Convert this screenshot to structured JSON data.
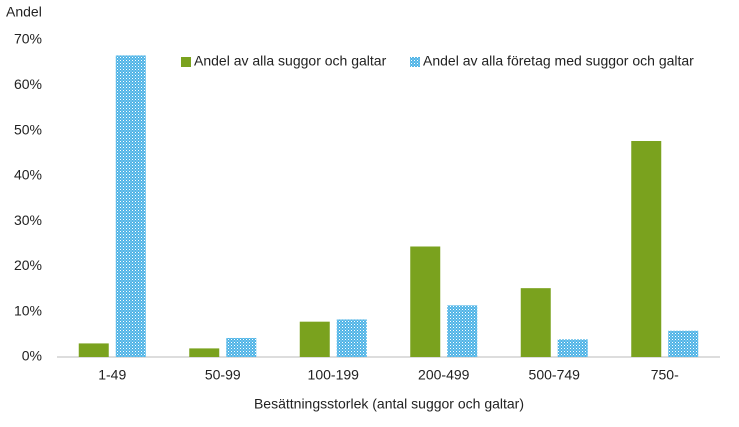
{
  "chart_data": {
    "type": "bar",
    "y_axis_label": "Andel",
    "x_axis_label": "Besättningsstorlek (antal suggor och galtar)",
    "categories": [
      "1-49",
      "50-99",
      "100-199",
      "200-499",
      "500-749",
      "750-"
    ],
    "series": [
      {
        "name": "Andel av alla suggor och galtar",
        "color": "#7aa21e",
        "values": [
          3.0,
          1.9,
          7.8,
          24.4,
          15.2,
          47.7
        ]
      },
      {
        "name": "Andel av alla företag med suggor och galtar",
        "color": "#4fb4e6",
        "pattern": "dots",
        "values": [
          66.6,
          4.2,
          8.3,
          11.4,
          3.9,
          5.8
        ]
      }
    ],
    "ylim": [
      0,
      70
    ],
    "yticks": [
      {
        "value": 0,
        "label": "0%"
      },
      {
        "value": 10,
        "label": "10%"
      },
      {
        "value": 20,
        "label": "20%"
      },
      {
        "value": 30,
        "label": "30%"
      },
      {
        "value": 40,
        "label": "40%"
      },
      {
        "value": 50,
        "label": "50%"
      },
      {
        "value": 60,
        "label": "60%"
      },
      {
        "value": 70,
        "label": "70%"
      }
    ],
    "grid": false,
    "legend": "top"
  }
}
